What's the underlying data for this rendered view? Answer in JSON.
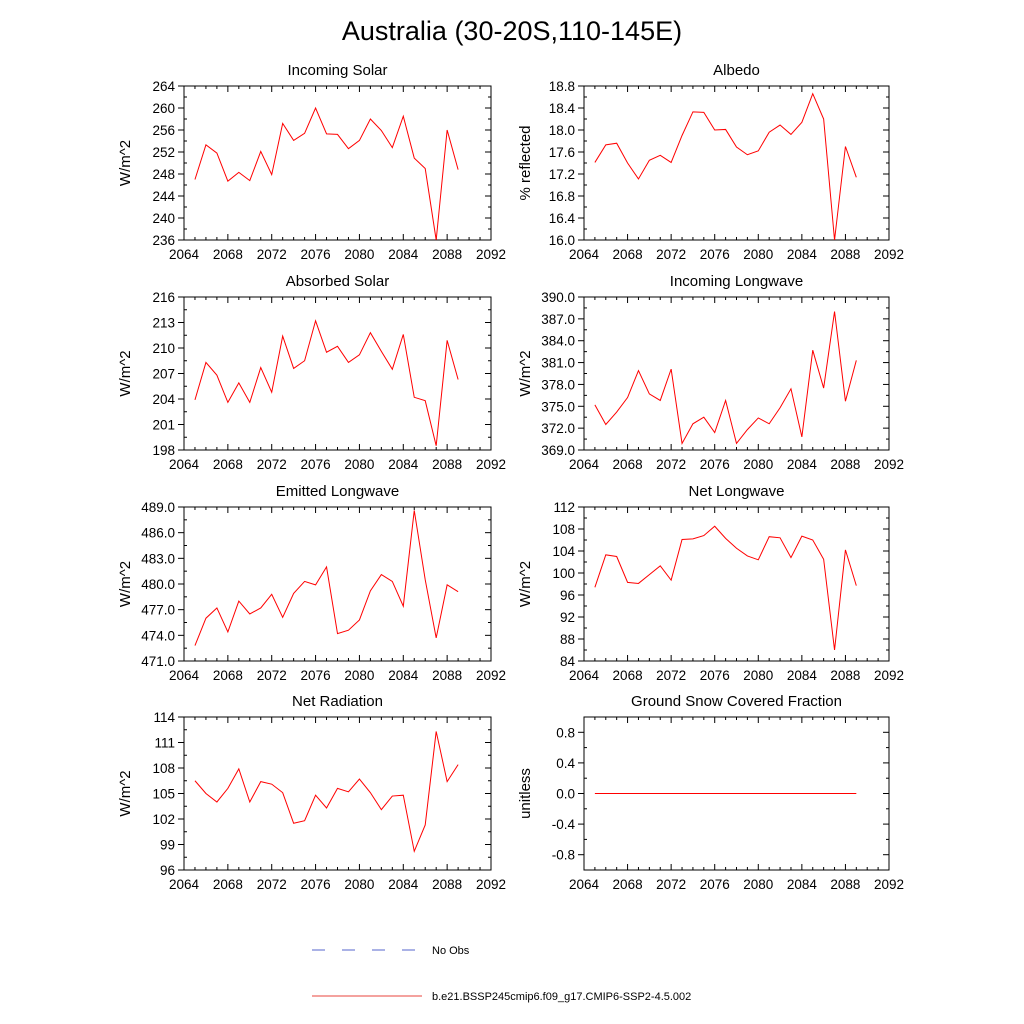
{
  "figure": {
    "title": "Australia (30-20S,110-145E)"
  },
  "legend": [
    {
      "label": "No Obs",
      "color": "#5566cc",
      "dashed": true
    },
    {
      "label": "b.e21.BSSP245cmip6.f09_g17.CMIP6-SSP2-4.5.002",
      "color": "#e8463c",
      "dashed": false
    }
  ],
  "chart_data": [
    {
      "type": "line",
      "title": "Incoming Solar",
      "ylabel": "W/m^2",
      "xlim": [
        2064,
        2092
      ],
      "ylim": [
        236,
        264
      ],
      "xticks": [
        2064,
        2068,
        2072,
        2076,
        2080,
        2084,
        2088,
        2092
      ],
      "yticks": [
        236,
        240,
        244,
        248,
        252,
        256,
        260,
        264
      ],
      "yticklabels": [
        "236",
        "240",
        "244",
        "248",
        "252",
        "256",
        "260",
        "264"
      ],
      "series": [
        {
          "color": "#ff0000",
          "x": [
            2065,
            2066,
            2067,
            2068,
            2069,
            2070,
            2071,
            2072,
            2073,
            2074,
            2075,
            2076,
            2077,
            2078,
            2079,
            2080,
            2081,
            2082,
            2083,
            2084,
            2085,
            2086,
            2087,
            2088,
            2089
          ],
          "y": [
            247.0,
            253.3,
            251.8,
            246.7,
            248.3,
            246.8,
            252.1,
            247.9,
            257.2,
            254.1,
            255.4,
            260.0,
            255.3,
            255.2,
            252.6,
            254.1,
            258.0,
            255.9,
            252.8,
            258.5,
            250.9,
            249.0,
            236.0,
            256.0,
            248.8
          ]
        }
      ]
    },
    {
      "type": "line",
      "title": "Albedo",
      "ylabel": "% reflected",
      "xlim": [
        2064,
        2092
      ],
      "ylim": [
        16.0,
        18.8
      ],
      "xticks": [
        2064,
        2068,
        2072,
        2076,
        2080,
        2084,
        2088,
        2092
      ],
      "yticks": [
        16.0,
        16.4,
        16.8,
        17.2,
        17.6,
        18.0,
        18.4,
        18.8
      ],
      "yticklabels": [
        "16.0",
        "16.4",
        "16.8",
        "17.2",
        "17.6",
        "18.0",
        "18.4",
        "18.8"
      ],
      "series": [
        {
          "color": "#ff0000",
          "x": [
            2065,
            2066,
            2067,
            2068,
            2069,
            2070,
            2071,
            2072,
            2073,
            2074,
            2075,
            2076,
            2077,
            2078,
            2079,
            2080,
            2081,
            2082,
            2083,
            2084,
            2085,
            2086,
            2087,
            2088,
            2089
          ],
          "y": [
            17.41,
            17.73,
            17.76,
            17.4,
            17.11,
            17.45,
            17.54,
            17.41,
            17.9,
            18.33,
            18.32,
            18.0,
            18.01,
            17.69,
            17.55,
            17.62,
            17.96,
            18.09,
            17.92,
            18.14,
            18.66,
            18.2,
            16.0,
            17.7,
            17.14
          ]
        }
      ]
    },
    {
      "type": "line",
      "title": "Absorbed Solar",
      "ylabel": "W/m^2",
      "xlim": [
        2064,
        2092
      ],
      "ylim": [
        198,
        216
      ],
      "xticks": [
        2064,
        2068,
        2072,
        2076,
        2080,
        2084,
        2088,
        2092
      ],
      "yticks": [
        198,
        201,
        204,
        207,
        210,
        213,
        216
      ],
      "yticklabels": [
        "198",
        "201",
        "204",
        "207",
        "210",
        "213",
        "216"
      ],
      "series": [
        {
          "color": "#ff0000",
          "x": [
            2065,
            2066,
            2067,
            2068,
            2069,
            2070,
            2071,
            2072,
            2073,
            2074,
            2075,
            2076,
            2077,
            2078,
            2079,
            2080,
            2081,
            2082,
            2083,
            2084,
            2085,
            2086,
            2087,
            2088,
            2089
          ],
          "y": [
            203.9,
            208.3,
            206.8,
            203.6,
            205.9,
            203.6,
            207.7,
            204.8,
            211.4,
            207.6,
            208.5,
            213.2,
            209.5,
            210.2,
            208.3,
            209.2,
            211.8,
            209.6,
            207.5,
            211.6,
            204.2,
            203.8,
            198.5,
            210.9,
            206.3
          ]
        }
      ]
    },
    {
      "type": "line",
      "title": "Incoming Longwave",
      "ylabel": "W/m^2",
      "xlim": [
        2064,
        2092
      ],
      "ylim": [
        369,
        390
      ],
      "xticks": [
        2064,
        2068,
        2072,
        2076,
        2080,
        2084,
        2088,
        2092
      ],
      "yticks": [
        369,
        372,
        375,
        378,
        381,
        384,
        387,
        390
      ],
      "yticklabels": [
        "369.0",
        "372.0",
        "375.0",
        "378.0",
        "381.0",
        "384.0",
        "387.0",
        "390.0"
      ],
      "series": [
        {
          "color": "#ff0000",
          "x": [
            2065,
            2066,
            2067,
            2068,
            2069,
            2070,
            2071,
            2072,
            2073,
            2074,
            2075,
            2076,
            2077,
            2078,
            2079,
            2080,
            2081,
            2082,
            2083,
            2084,
            2085,
            2086,
            2087,
            2088,
            2089
          ],
          "y": [
            375.2,
            372.5,
            374.2,
            376.2,
            379.9,
            376.7,
            375.8,
            380.1,
            369.9,
            372.6,
            373.5,
            371.4,
            375.8,
            369.9,
            371.8,
            373.4,
            372.6,
            374.8,
            377.4,
            370.8,
            382.7,
            377.5,
            388.0,
            375.7,
            381.3
          ]
        }
      ]
    },
    {
      "type": "line",
      "title": "Emitted Longwave",
      "ylabel": "W/m^2",
      "xlim": [
        2064,
        2092
      ],
      "ylim": [
        471,
        489
      ],
      "xticks": [
        2064,
        2068,
        2072,
        2076,
        2080,
        2084,
        2088,
        2092
      ],
      "yticks": [
        471,
        474,
        477,
        480,
        483,
        486,
        489
      ],
      "yticklabels": [
        "471.0",
        "474.0",
        "477.0",
        "480.0",
        "483.0",
        "486.0",
        "489.0"
      ],
      "series": [
        {
          "color": "#ff0000",
          "x": [
            2065,
            2066,
            2067,
            2068,
            2069,
            2070,
            2071,
            2072,
            2073,
            2074,
            2075,
            2076,
            2077,
            2078,
            2079,
            2080,
            2081,
            2082,
            2083,
            2084,
            2085,
            2086,
            2087,
            2088,
            2089
          ],
          "y": [
            472.8,
            476.0,
            477.2,
            474.4,
            478.0,
            476.5,
            477.2,
            478.8,
            476.1,
            478.9,
            480.3,
            479.9,
            482.0,
            474.2,
            474.6,
            475.8,
            479.2,
            481.1,
            480.3,
            477.4,
            488.6,
            480.5,
            473.7,
            479.9,
            479.1
          ]
        }
      ]
    },
    {
      "type": "line",
      "title": "Net Longwave",
      "ylabel": "W/m^2",
      "xlim": [
        2064,
        2092
      ],
      "ylim": [
        84,
        112
      ],
      "xticks": [
        2064,
        2068,
        2072,
        2076,
        2080,
        2084,
        2088,
        2092
      ],
      "yticks": [
        84,
        88,
        92,
        96,
        100,
        104,
        108,
        112
      ],
      "yticklabels": [
        "84",
        "88",
        "92",
        "96",
        "100",
        "104",
        "108",
        "112"
      ],
      "series": [
        {
          "color": "#ff0000",
          "x": [
            2065,
            2066,
            2067,
            2068,
            2069,
            2070,
            2071,
            2072,
            2073,
            2074,
            2075,
            2076,
            2077,
            2078,
            2079,
            2080,
            2081,
            2082,
            2083,
            2084,
            2085,
            2086,
            2087,
            2088,
            2089
          ],
          "y": [
            97.4,
            103.3,
            103.0,
            98.3,
            98.1,
            99.7,
            101.3,
            98.7,
            106.1,
            106.2,
            106.8,
            108.5,
            106.3,
            104.5,
            103.1,
            102.4,
            106.6,
            106.4,
            102.8,
            106.7,
            106.0,
            102.5,
            86.0,
            104.2,
            97.7
          ]
        }
      ]
    },
    {
      "type": "line",
      "title": "Net Radiation",
      "ylabel": "W/m^2",
      "xlim": [
        2064,
        2092
      ],
      "ylim": [
        96,
        114
      ],
      "xticks": [
        2064,
        2068,
        2072,
        2076,
        2080,
        2084,
        2088,
        2092
      ],
      "yticks": [
        96,
        99,
        102,
        105,
        108,
        111,
        114
      ],
      "yticklabels": [
        "96",
        "99",
        "102",
        "105",
        "108",
        "111",
        "114"
      ],
      "series": [
        {
          "color": "#ff0000",
          "x": [
            2065,
            2066,
            2067,
            2068,
            2069,
            2070,
            2071,
            2072,
            2073,
            2074,
            2075,
            2076,
            2077,
            2078,
            2079,
            2080,
            2081,
            2082,
            2083,
            2084,
            2085,
            2086,
            2087,
            2088,
            2089
          ],
          "y": [
            106.5,
            105.0,
            104.0,
            105.6,
            107.9,
            104.0,
            106.4,
            106.1,
            105.1,
            101.5,
            101.8,
            104.8,
            103.3,
            105.6,
            105.2,
            106.7,
            105.1,
            103.1,
            104.7,
            104.8,
            98.2,
            101.3,
            112.3,
            106.4,
            108.4
          ]
        }
      ]
    },
    {
      "type": "line",
      "title": "Ground Snow Covered Fraction",
      "ylabel": "unitless",
      "xlim": [
        2064,
        2092
      ],
      "ylim": [
        -1.0,
        1.0
      ],
      "xticks": [
        2064,
        2068,
        2072,
        2076,
        2080,
        2084,
        2088,
        2092
      ],
      "yticks": [
        -0.8,
        -0.4,
        0.0,
        0.4,
        0.8
      ],
      "yticklabels": [
        "-0.8",
        "-0.4",
        "0.0",
        "0.4",
        "0.8"
      ],
      "series": [
        {
          "color": "#ff0000",
          "x": [
            2065,
            2066,
            2067,
            2068,
            2069,
            2070,
            2071,
            2072,
            2073,
            2074,
            2075,
            2076,
            2077,
            2078,
            2079,
            2080,
            2081,
            2082,
            2083,
            2084,
            2085,
            2086,
            2087,
            2088,
            2089
          ],
          "y": [
            0,
            0,
            0,
            0,
            0,
            0,
            0,
            0,
            0,
            0,
            0,
            0,
            0,
            0,
            0,
            0,
            0,
            0,
            0,
            0,
            0,
            0,
            0,
            0,
            0
          ]
        }
      ]
    }
  ]
}
